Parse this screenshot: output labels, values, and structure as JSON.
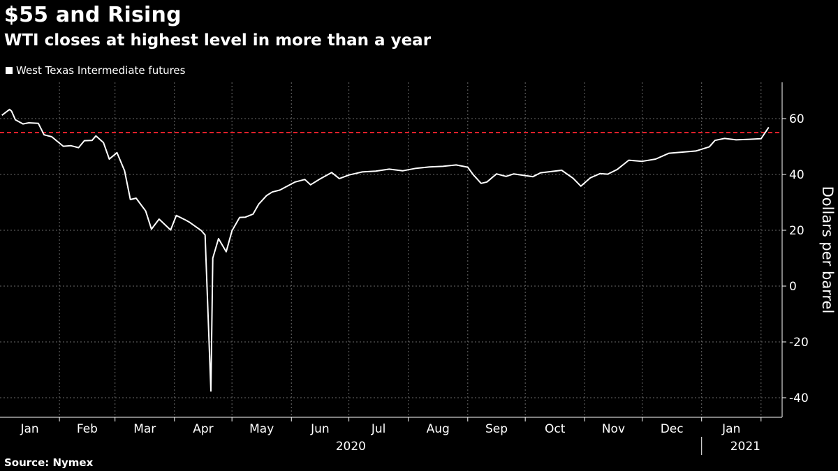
{
  "title": "$55 and Rising",
  "subtitle": "WTI closes at highest level in more than a year",
  "source": "Source: Nymex",
  "colors": {
    "background": "#000000",
    "line": "#ffffff",
    "reference": "#e0202a",
    "grid": "#6a6a6a"
  },
  "chart_data": {
    "type": "line",
    "legend": [
      "West Texas Intermediate futures"
    ],
    "ylabel": "Dollars per barrel",
    "ylim": [
      -47,
      73
    ],
    "yticks": [
      60,
      40,
      20,
      0,
      -20,
      -40
    ],
    "y_axis_position": "right",
    "grid": true,
    "reference_line": {
      "y": 55,
      "style": "dashed"
    },
    "xlabels": [
      "Jan",
      "Feb",
      "Mar",
      "Apr",
      "May",
      "Jun",
      "Jul",
      "Aug",
      "Sep",
      "Oct",
      "Nov",
      "Dec",
      "Jan"
    ],
    "year_labels": [
      "2020",
      "2021"
    ],
    "series": [
      {
        "name": "West Texas Intermediate futures",
        "x": [
          "2020-01-02",
          "2020-01-06",
          "2020-01-07",
          "2020-01-09",
          "2020-01-13",
          "2020-01-16",
          "2020-01-21",
          "2020-01-24",
          "2020-01-28",
          "2020-02-03",
          "2020-02-07",
          "2020-02-11",
          "2020-02-14",
          "2020-02-18",
          "2020-02-20",
          "2020-02-24",
          "2020-02-27",
          "2020-03-02",
          "2020-03-06",
          "2020-03-09",
          "2020-03-12",
          "2020-03-17",
          "2020-03-20",
          "2020-03-24",
          "2020-03-30",
          "2020-04-02",
          "2020-04-07",
          "2020-04-09",
          "2020-04-15",
          "2020-04-17",
          "2020-04-20",
          "2020-04-21",
          "2020-04-24",
          "2020-04-28",
          "2020-05-01",
          "2020-05-05",
          "2020-05-08",
          "2020-05-12",
          "2020-05-15",
          "2020-05-19",
          "2020-05-22",
          "2020-05-26",
          "2020-05-29",
          "2020-06-03",
          "2020-06-08",
          "2020-06-11",
          "2020-06-16",
          "2020-06-22",
          "2020-06-26",
          "2020-07-01",
          "2020-07-08",
          "2020-07-15",
          "2020-07-22",
          "2020-07-29",
          "2020-08-05",
          "2020-08-12",
          "2020-08-19",
          "2020-08-26",
          "2020-09-01",
          "2020-09-04",
          "2020-09-08",
          "2020-09-11",
          "2020-09-16",
          "2020-09-21",
          "2020-09-25",
          "2020-09-30",
          "2020-10-05",
          "2020-10-09",
          "2020-10-14",
          "2020-10-20",
          "2020-10-26",
          "2020-10-30",
          "2020-11-04",
          "2020-11-09",
          "2020-11-13",
          "2020-11-18",
          "2020-11-24",
          "2020-12-01",
          "2020-12-08",
          "2020-12-15",
          "2020-12-22",
          "2020-12-29",
          "2021-01-05",
          "2021-01-08",
          "2021-01-13",
          "2021-01-19",
          "2021-01-26",
          "2021-02-01",
          "2021-02-05"
        ],
        "y": [
          61.2,
          63.3,
          62.7,
          59.6,
          58.1,
          58.5,
          58.3,
          54.2,
          53.5,
          50.1,
          50.3,
          49.6,
          52.1,
          52.2,
          53.8,
          51.4,
          45.5,
          47.8,
          41.3,
          31.0,
          31.5,
          26.9,
          20.4,
          24.0,
          20.1,
          25.3,
          23.6,
          22.8,
          19.9,
          18.3,
          -37.6,
          10.0,
          17.0,
          12.3,
          19.8,
          24.6,
          24.7,
          25.8,
          29.4,
          32.4,
          33.7,
          34.4,
          35.5,
          37.3,
          38.2,
          36.3,
          38.4,
          40.7,
          38.5,
          39.8,
          40.9,
          41.2,
          41.9,
          41.3,
          42.2,
          42.7,
          42.9,
          43.4,
          42.6,
          39.8,
          36.8,
          37.3,
          40.2,
          39.3,
          40.2,
          39.7,
          39.2,
          40.6,
          41.0,
          41.5,
          38.6,
          35.8,
          38.8,
          40.3,
          40.1,
          41.8,
          45.1,
          44.7,
          45.5,
          47.6,
          48.0,
          48.4,
          49.9,
          52.2,
          52.9,
          52.4,
          52.6,
          52.8,
          56.9
        ]
      }
    ]
  }
}
